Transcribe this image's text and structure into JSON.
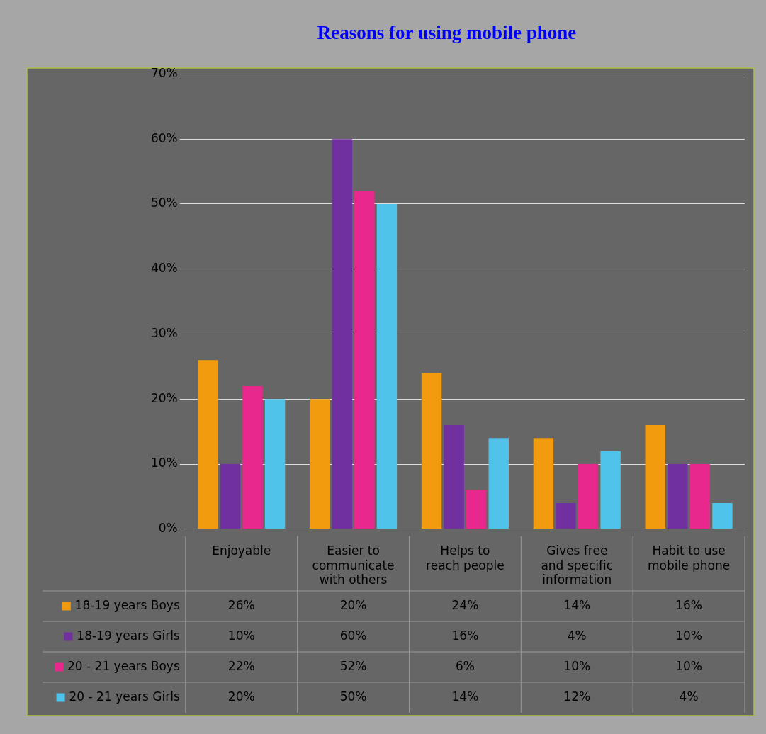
{
  "chart_data": {
    "type": "bar",
    "title": "Reasons for using mobile phone",
    "categories": [
      "Enjoyable",
      "Easier to communicate with others",
      "Helps to reach people",
      "Gives free and specific information",
      "Habit to use mobile phone"
    ],
    "series": [
      {
        "name": "18-19 years Boys",
        "color": "#f29b0f",
        "values": [
          26,
          20,
          24,
          14,
          16
        ],
        "value_labels": [
          "26%",
          "20%",
          "24%",
          "14%",
          "16%"
        ]
      },
      {
        "name": "18-19 years Girls",
        "color": "#7030a0",
        "values": [
          10,
          60,
          16,
          4,
          10
        ],
        "value_labels": [
          "10%",
          "60%",
          "16%",
          "4%",
          "10%"
        ]
      },
      {
        "name": "20 - 21 years Boys",
        "color": "#e8288c",
        "values": [
          22,
          52,
          6,
          10,
          10
        ],
        "value_labels": [
          "22%",
          "52%",
          "6%",
          "10%",
          "10%"
        ]
      },
      {
        "name": "20 - 21 years Girls",
        "color": "#4fc3ea",
        "values": [
          20,
          50,
          14,
          12,
          4
        ],
        "value_labels": [
          "20%",
          "50%",
          "14%",
          "12%",
          "4%"
        ]
      }
    ],
    "ylim": [
      0,
      70
    ],
    "yticks": [
      {
        "value": 0,
        "label": "0%"
      },
      {
        "value": 10,
        "label": "10%"
      },
      {
        "value": 20,
        "label": "20%"
      },
      {
        "value": 30,
        "label": "30%"
      },
      {
        "value": 40,
        "label": "40%"
      },
      {
        "value": 50,
        "label": "50%"
      },
      {
        "value": 60,
        "label": "60%"
      },
      {
        "value": 70,
        "label": "70%"
      }
    ],
    "grid": "y",
    "legend": "bottom left"
  }
}
